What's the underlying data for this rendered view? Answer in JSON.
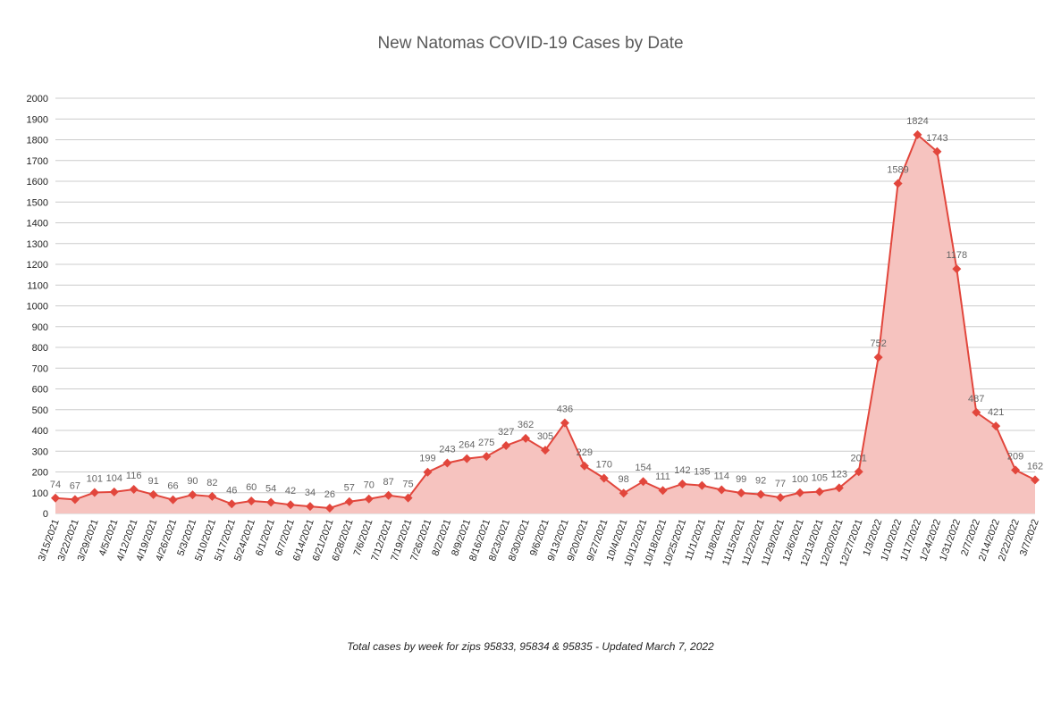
{
  "chart_data": {
    "type": "area",
    "title": "New Natomas COVID-19 Cases by Date",
    "subtitle": "Total cases by week for zips 95833, 95834 & 95835 - Updated March 7, 2022",
    "xlabel": "",
    "ylabel": "",
    "ylim": [
      0,
      2000
    ],
    "yticks": [
      0,
      100,
      200,
      300,
      400,
      500,
      600,
      700,
      800,
      900,
      1000,
      1100,
      1200,
      1300,
      1400,
      1500,
      1600,
      1700,
      1800,
      1900,
      2000
    ],
    "grid": true,
    "legend": "none",
    "colors": {
      "line": "#e2463c",
      "fill": "#f6c3bf",
      "grid": "#cccccc",
      "label": "#666666"
    },
    "categories": [
      "3/15/2021",
      "3/22/2021",
      "3/29/2021",
      "4/5/2021",
      "4/12/2021",
      "4/19/2021",
      "4/26/2021",
      "5/3/2021",
      "5/10/2021",
      "5/17/2021",
      "5/24/2021",
      "6/1/2021",
      "6/7/2021",
      "6/14/2021",
      "6/21/2021",
      "6/28/2021",
      "7/6/2021",
      "7/12/2021",
      "7/19/2021",
      "7/26/2021",
      "8/2/2021",
      "8/9/2021",
      "8/16/2021",
      "8/23/2021",
      "8/30/2021",
      "9/6/2021",
      "9/13/2021",
      "9/20/2021",
      "9/27/2021",
      "10/4/2021",
      "10/12/2021",
      "10/18/2021",
      "10/25/2021",
      "11/1/2021",
      "11/8/2021",
      "11/15/2021",
      "11/22/2021",
      "11/29/2021",
      "12/6/2021",
      "12/13/2021",
      "12/20/2021",
      "12/27/2021",
      "1/3/2022",
      "1/10/2022",
      "1/17/2022",
      "1/24/2022",
      "1/31/2022",
      "2/7/2022",
      "2/14/2022",
      "2/22/2022",
      "3/7/2022"
    ],
    "values": [
      74,
      67,
      101,
      104,
      116,
      91,
      66,
      90,
      82,
      46,
      60,
      54,
      42,
      34,
      26,
      57,
      70,
      87,
      75,
      199,
      243,
      264,
      275,
      327,
      362,
      305,
      436,
      229,
      170,
      98,
      154,
      111,
      142,
      135,
      114,
      99,
      92,
      77,
      100,
      105,
      123,
      201,
      752,
      1589,
      1824,
      1743,
      1178,
      487,
      421,
      209,
      162
    ]
  }
}
